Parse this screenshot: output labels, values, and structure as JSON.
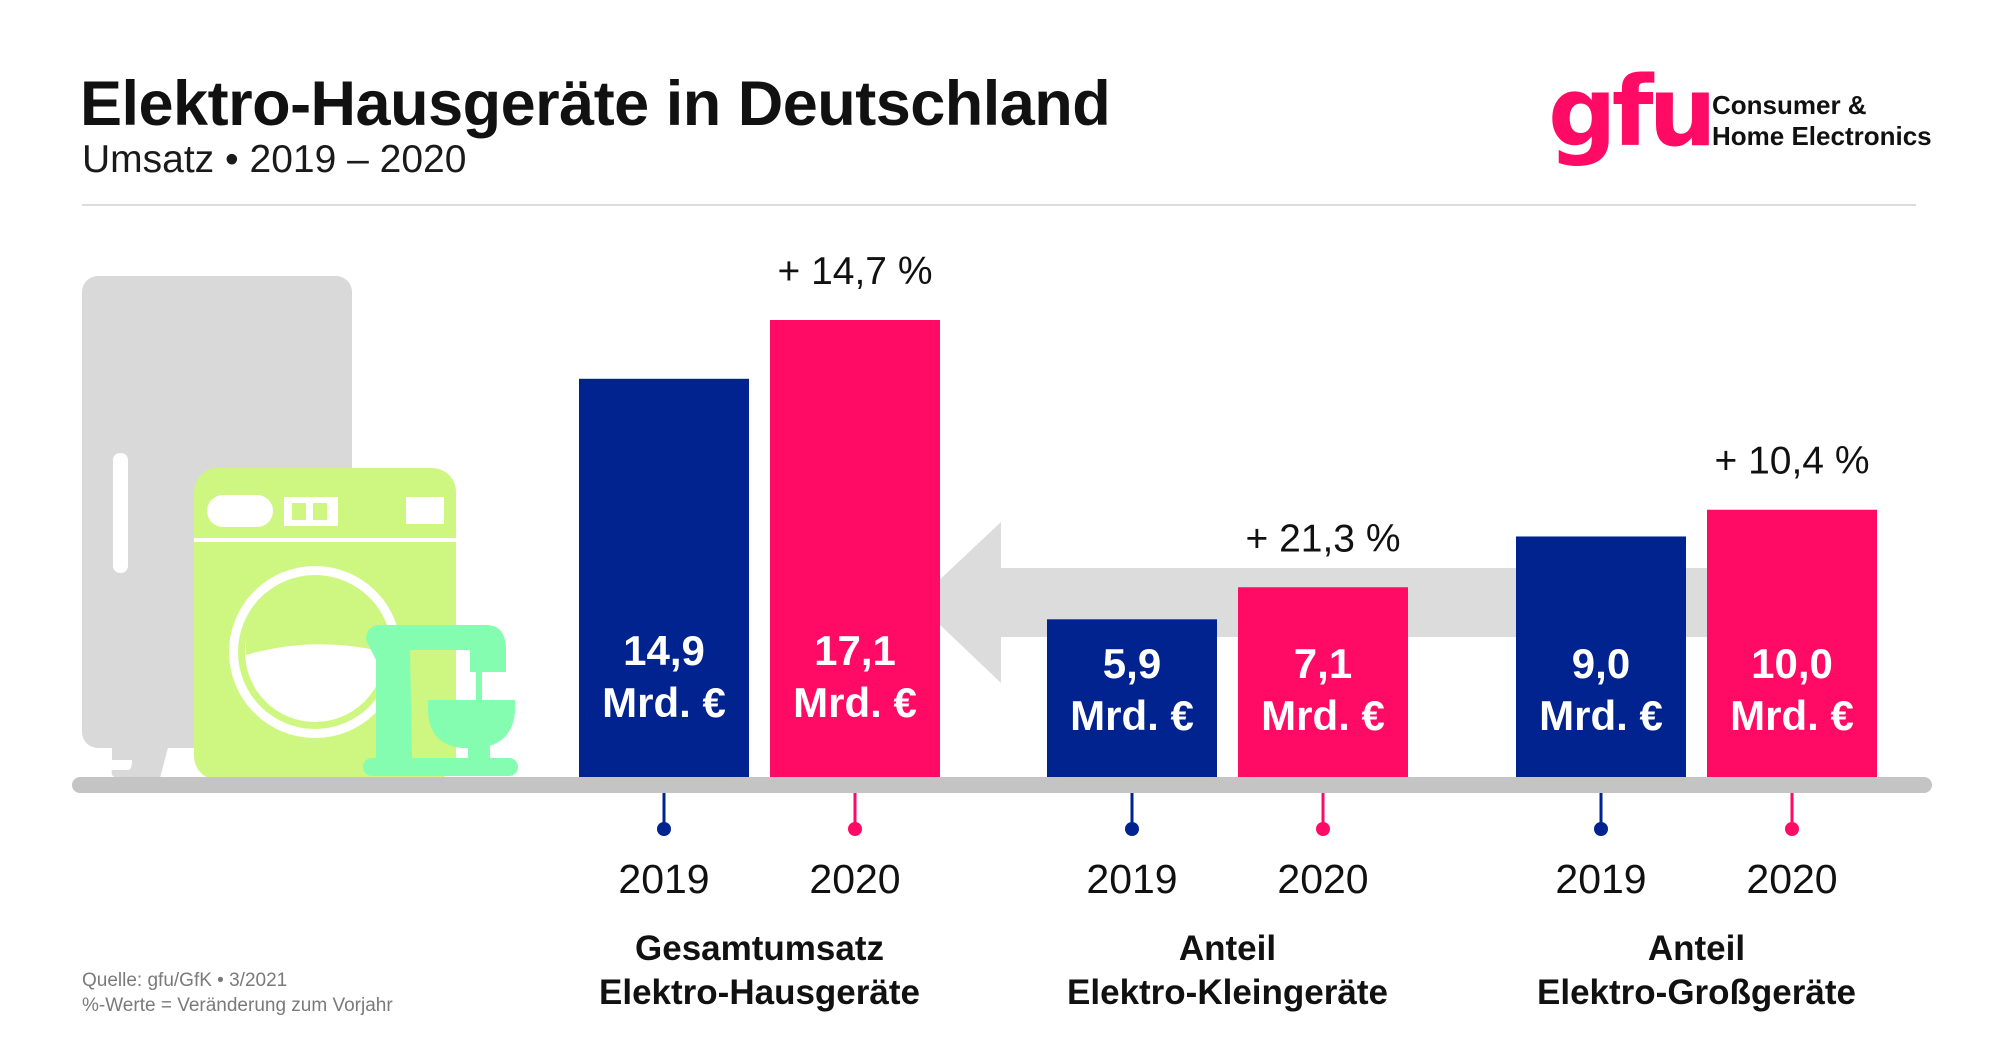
{
  "header": {
    "title": "Elektro-Hausgeräte in Deutschland",
    "subtitle": "Umsatz • 2019 – 2020"
  },
  "logo": {
    "mark": "gfu",
    "line1": "Consumer &",
    "line2": "Home Electronics"
  },
  "source": {
    "line1": "Quelle: gfu/GfK • 3/2021",
    "line2": "%-Werte = Veränderung zum Vorjahr"
  },
  "colors": {
    "year_2019": "#00238F",
    "year_2020": "#FF0A64",
    "floor": "#C4C4C4",
    "arrow": "#DCDCDC",
    "fridge": "#D9D9D9",
    "washer": "#CDF781",
    "mixer": "#84FDB0"
  },
  "chart_data": {
    "type": "bar",
    "title": "Elektro-Hausgeräte in Deutschland",
    "subtitle": "Umsatz • 2019 – 2020",
    "unit": "Mrd. €",
    "xlabel": "",
    "ylabel": "",
    "ylim": [
      0,
      17.1
    ],
    "grid": false,
    "categories": [
      {
        "line1": "Gesamtumsatz",
        "line2": "Elektro-Hausgeräte"
      },
      {
        "line1": "Anteil",
        "line2": "Elektro-Kleingeräte"
      },
      {
        "line1": "Anteil",
        "line2": "Elektro-Großgeräte"
      }
    ],
    "series": [
      {
        "name": "2019",
        "values": [
          14.9,
          5.9,
          9.0
        ],
        "labels": [
          "14,9",
          "5,9",
          "9,0"
        ]
      },
      {
        "name": "2020",
        "values": [
          17.1,
          7.1,
          10.0
        ],
        "labels": [
          "17,1",
          "7,1",
          "10,0"
        ]
      }
    ],
    "changes": [
      "+ 14,7 %",
      "+ 21,3 %",
      "+ 10,4 %"
    ],
    "annotation": "Arrow pointing from Anteil groups toward Gesamtumsatz (shares add up to total)"
  }
}
